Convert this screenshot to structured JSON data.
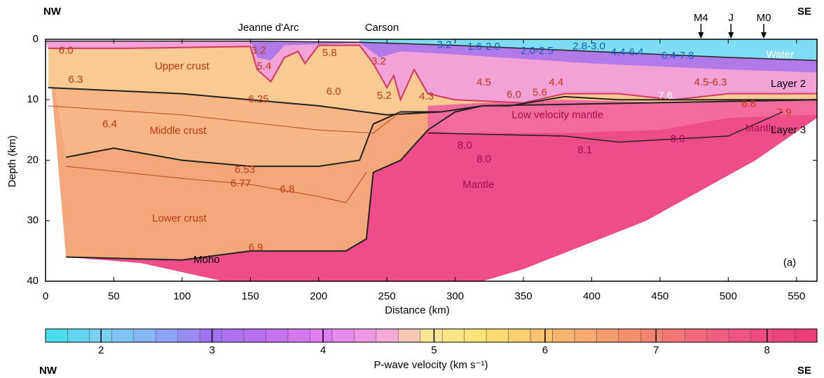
{
  "chart_data": {
    "type": "section",
    "x_label": "Distance (km)",
    "y_label": "Depth (km)",
    "xlim": [
      0,
      565
    ],
    "ylim": [
      0,
      40
    ],
    "y_inverted": true,
    "xticks": [
      0,
      50,
      100,
      150,
      200,
      250,
      300,
      350,
      400,
      450,
      500,
      550
    ],
    "yticks": [
      0,
      10,
      20,
      30,
      40
    ],
    "direction_labels": [
      "NW",
      "SE"
    ],
    "basins": [
      "Jeanne d'Arc",
      "Carson"
    ],
    "markers": [
      {
        "label": "M4",
        "x": 480
      },
      {
        "label": "J",
        "x": 502
      },
      {
        "label": "M0",
        "x": 526
      }
    ],
    "region_labels": [
      "Water",
      "Upper crust",
      "Middle crust",
      "Lower crust",
      "Moho",
      "Mantle",
      "Low velocity mantle",
      "Mantle",
      "Layer 2",
      "Layer 3",
      "(a)"
    ],
    "velocity_labels": [
      "6.0",
      "5.8",
      "3.2",
      "3.2",
      "5.4",
      "6.0",
      "5.2",
      "4.3",
      "4.5",
      "6.0",
      "5.6",
      "4.4",
      "7.6",
      "4.5-6.3",
      "6.8",
      "7.9",
      "6.3",
      "6.25",
      "6.4",
      "6.53",
      "6.77",
      "6.8",
      "6.9",
      "8.0",
      "8.0",
      "8.1",
      "8.0",
      "3.2",
      "1.6-2.0",
      "2.0-2.5",
      "2.8-3.0",
      "4.4-6.4",
      "6.4-7.8"
    ],
    "colorbar": {
      "label": "P-wave velocity (km s⁻¹)",
      "lim": [
        1.5,
        8.45
      ],
      "ticks": [
        2,
        3,
        4,
        5,
        6,
        7,
        8
      ]
    }
  }
}
